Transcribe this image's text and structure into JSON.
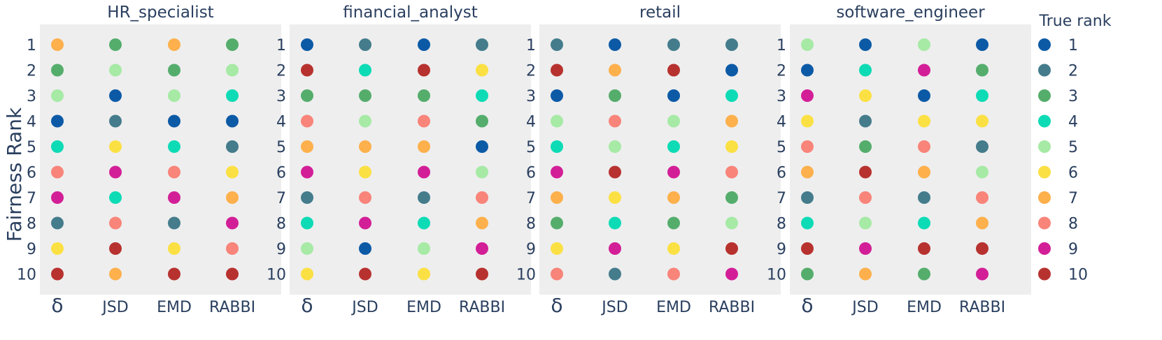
{
  "chart_data": {
    "type": "scatter",
    "ylabel": "Fairness Rank",
    "x_categories": [
      "δ",
      "JSD",
      "EMD",
      "RABBI"
    ],
    "y_ticks": [
      1,
      2,
      3,
      4,
      5,
      6,
      7,
      8,
      9,
      10
    ],
    "legend": {
      "title": "True rank",
      "placement": "right",
      "entries": [
        "1",
        "2",
        "3",
        "4",
        "5",
        "6",
        "7",
        "8",
        "9",
        "10"
      ]
    },
    "rank_colors": {
      "1": "#0c5aa6",
      "2": "#447c8c",
      "3": "#55ad6c",
      "4": "#0ddbb5",
      "5": "#a6eaa5",
      "6": "#fbe044",
      "7": "#fdb04c",
      "8": "#f8847a",
      "9": "#d31f97",
      "10": "#b7322f"
    },
    "panels": [
      {
        "title": "HR_specialist",
        "columns": [
          [
            7,
            3,
            5,
            1,
            4,
            8,
            9,
            2,
            6,
            10
          ],
          [
            3,
            5,
            1,
            2,
            6,
            9,
            4,
            8,
            10,
            7
          ],
          [
            7,
            3,
            5,
            1,
            4,
            8,
            9,
            2,
            6,
            10
          ],
          [
            3,
            5,
            4,
            1,
            2,
            6,
            7,
            9,
            8,
            10
          ]
        ]
      },
      {
        "title": "financial_analyst",
        "columns": [
          [
            1,
            10,
            3,
            8,
            7,
            9,
            2,
            4,
            5,
            6
          ],
          [
            2,
            4,
            3,
            5,
            7,
            6,
            8,
            9,
            1,
            10
          ],
          [
            1,
            10,
            3,
            8,
            7,
            9,
            2,
            4,
            5,
            6
          ],
          [
            2,
            6,
            4,
            3,
            1,
            5,
            8,
            7,
            9,
            10
          ]
        ]
      },
      {
        "title": "retail",
        "columns": [
          [
            2,
            10,
            1,
            5,
            4,
            9,
            7,
            3,
            6,
            8
          ],
          [
            1,
            7,
            3,
            8,
            5,
            10,
            6,
            4,
            9,
            2
          ],
          [
            2,
            10,
            1,
            5,
            4,
            9,
            7,
            3,
            6,
            8
          ],
          [
            2,
            1,
            4,
            7,
            6,
            8,
            3,
            5,
            10,
            9
          ]
        ]
      },
      {
        "title": "software_engineer",
        "columns": [
          [
            5,
            1,
            9,
            6,
            8,
            7,
            2,
            4,
            10,
            3
          ],
          [
            1,
            4,
            6,
            2,
            3,
            10,
            8,
            5,
            9,
            7
          ],
          [
            5,
            9,
            1,
            6,
            8,
            7,
            2,
            4,
            10,
            3
          ],
          [
            1,
            3,
            4,
            6,
            2,
            5,
            8,
            7,
            10,
            9
          ]
        ]
      }
    ]
  }
}
